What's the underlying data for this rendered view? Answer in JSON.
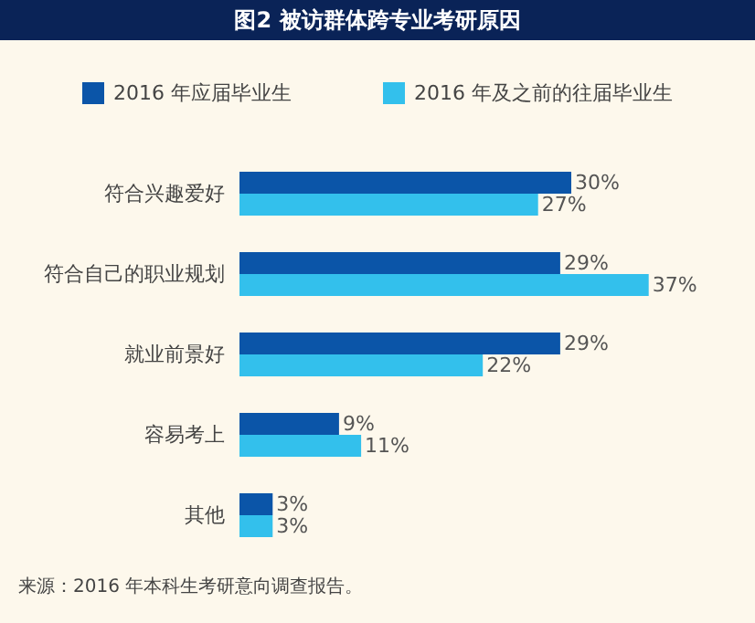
{
  "chart_data": {
    "type": "bar",
    "orientation": "horizontal",
    "title": "图2 被访群体跨专业考研原因",
    "categories": [
      "符合兴趣爱好",
      "符合自己的职业规划",
      "就业前景好",
      "容易考上",
      "其他"
    ],
    "series": [
      {
        "name": "2016 年应届毕业生",
        "color": "#0b55a8",
        "values": [
          30,
          29,
          29,
          9,
          3
        ],
        "value_labels": [
          "30%",
          "29%",
          "29%",
          "9%",
          "3%"
        ]
      },
      {
        "name": "2016 年及之前的往届毕业生",
        "color": "#33c0ec",
        "values": [
          27,
          37,
          22,
          11,
          3
        ],
        "value_labels": [
          "27%",
          "37%",
          "22%",
          "11%",
          "3%"
        ]
      }
    ],
    "tick_labels": "y",
    "grid": false,
    "legend": "top",
    "annotations": [
      "来源：2016 年本科生考研意向调查报告。"
    ]
  }
}
